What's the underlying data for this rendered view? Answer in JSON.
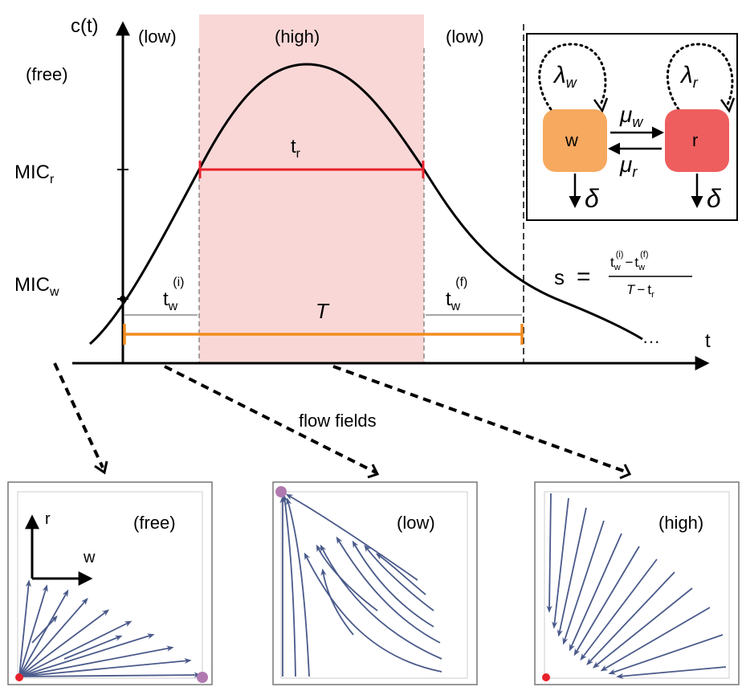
{
  "main_plot": {
    "y_axis_label": "c(t)",
    "x_axis_label": "t",
    "region_labels": {
      "free": "(free)",
      "low_left": "(low)",
      "high": "(high)",
      "low_right": "(low)"
    },
    "y_ticks": {
      "mic_r": "MIC",
      "mic_r_sub": "r",
      "mic_w": "MIC",
      "mic_w_sub": "w"
    },
    "interval_labels": {
      "t_r": "t",
      "t_r_sub": "r",
      "t_w_i": "t",
      "t_w_i_sub": "w",
      "t_w_i_sup": "(i)",
      "period": "T",
      "t_w_f": "t",
      "t_w_f_sub": "w",
      "t_w_f_sup": "(f)"
    },
    "ellipsis": "···"
  },
  "formula": {
    "lhs": "s",
    "eq": "=",
    "numerator": {
      "t1": "t",
      "t1_sub": "w",
      "t1_sup": "(i)",
      "minus": "−",
      "t2": "t",
      "t2_sub": "w",
      "t2_sup": "(f)"
    },
    "denominator": {
      "T": "T",
      "minus": "−",
      "t": "t",
      "t_sub": "r"
    }
  },
  "inset": {
    "node_w": "w",
    "node_r": "r",
    "lambda_w": "λ",
    "lambda_w_sub": "w",
    "lambda_r": "λ",
    "lambda_r_sub": "r",
    "mu_w": "μ",
    "mu_w_sub": "w",
    "mu_r": "μ",
    "mu_r_sub": "r",
    "delta_w": "δ",
    "delta_r": "δ",
    "colors": {
      "w": "#f6a95f",
      "r": "#ee5e5e"
    }
  },
  "caption": "flow fields",
  "panels": {
    "free": {
      "label": "(free)",
      "axis_r": "r",
      "axis_w": "w"
    },
    "low": {
      "label": "(low)"
    },
    "high": {
      "label": "(high)"
    }
  },
  "colors": {
    "curve": "#000000",
    "high_band": "#f9d7d7",
    "t_r_bar": "#e8212a",
    "period_bar": "#f28c1e",
    "flow_arrows": "#4a5a8a",
    "stable_point": "#b07ab0",
    "unstable_point": "#e8212a"
  }
}
